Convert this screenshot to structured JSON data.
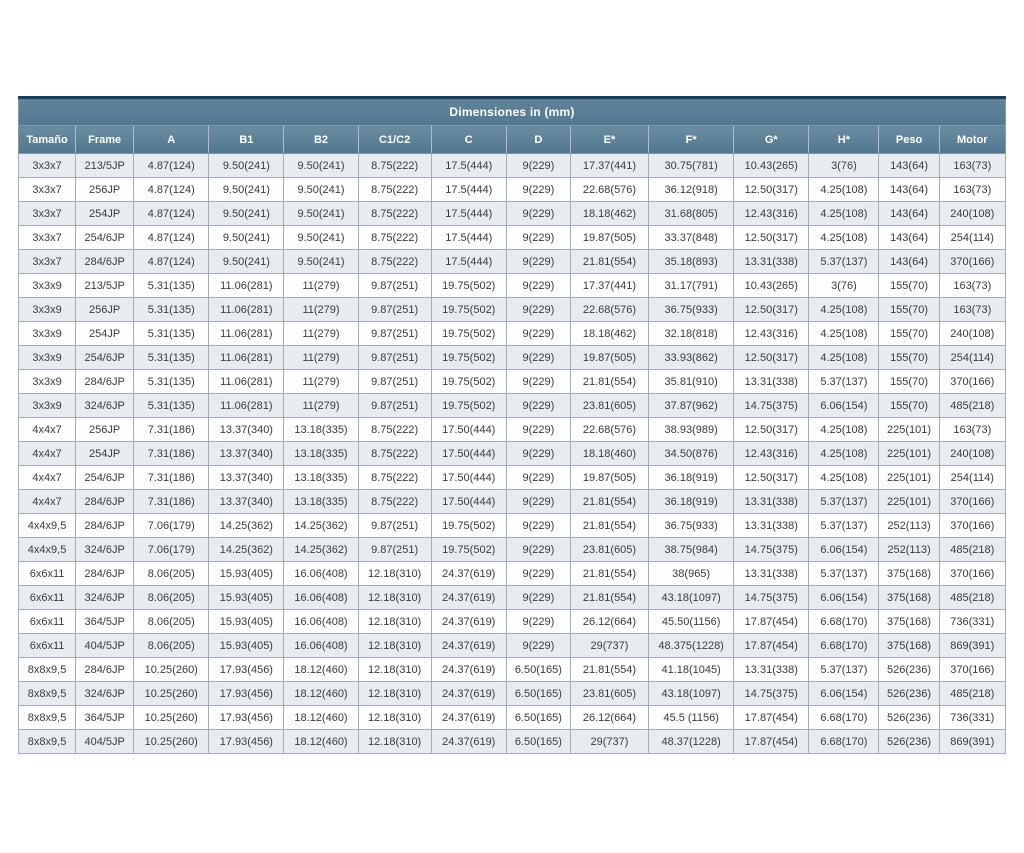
{
  "table": {
    "title": "Dimensiones in (mm)",
    "columns": [
      "Tamaño",
      "Frame",
      "A",
      "B1",
      "B2",
      "C1/C2",
      "C",
      "D",
      "E*",
      "F*",
      "G*",
      "H*",
      "Peso",
      "Motor"
    ],
    "rows": [
      [
        "3x3x7",
        "213/5JP",
        "4.87(124)",
        "9.50(241)",
        "9.50(241)",
        "8.75(222)",
        "17.5(444)",
        "9(229)",
        "17.37(441)",
        "30.75(781)",
        "10.43(265)",
        "3(76)",
        "143(64)",
        "163(73)"
      ],
      [
        "3x3x7",
        "256JP",
        "4.87(124)",
        "9.50(241)",
        "9.50(241)",
        "8.75(222)",
        "17.5(444)",
        "9(229)",
        "22.68(576)",
        "36.12(918)",
        "12.50(317)",
        "4.25(108)",
        "143(64)",
        "163(73)"
      ],
      [
        "3x3x7",
        "254JP",
        "4.87(124)",
        "9.50(241)",
        "9.50(241)",
        "8.75(222)",
        "17.5(444)",
        "9(229)",
        "18.18(462)",
        "31.68(805)",
        "12.43(316)",
        "4.25(108)",
        "143(64)",
        "240(108)"
      ],
      [
        "3x3x7",
        "254/6JP",
        "4.87(124)",
        "9.50(241)",
        "9.50(241)",
        "8.75(222)",
        "17.5(444)",
        "9(229)",
        "19.87(505)",
        "33.37(848)",
        "12.50(317)",
        "4.25(108)",
        "143(64)",
        "254(114)"
      ],
      [
        "3x3x7",
        "284/6JP",
        "4.87(124)",
        "9.50(241)",
        "9.50(241)",
        "8.75(222)",
        "17.5(444)",
        "9(229)",
        "21.81(554)",
        "35.18(893)",
        "13.31(338)",
        "5.37(137)",
        "143(64)",
        "370(166)"
      ],
      [
        "3x3x9",
        "213/5JP",
        "5.31(135)",
        "11.06(281)",
        "11(279)",
        "9.87(251)",
        "19.75(502)",
        "9(229)",
        "17.37(441)",
        "31.17(791)",
        "10.43(265)",
        "3(76)",
        "155(70)",
        "163(73)"
      ],
      [
        "3x3x9",
        "256JP",
        "5.31(135)",
        "11.06(281)",
        "11(279)",
        "9.87(251)",
        "19.75(502)",
        "9(229)",
        "22.68(576)",
        "36.75(933)",
        "12.50(317)",
        "4.25(108)",
        "155(70)",
        "163(73)"
      ],
      [
        "3x3x9",
        "254JP",
        "5.31(135)",
        "11.06(281)",
        "11(279)",
        "9.87(251)",
        "19.75(502)",
        "9(229)",
        "18.18(462)",
        "32.18(818)",
        "12.43(316)",
        "4.25(108)",
        "155(70)",
        "240(108)"
      ],
      [
        "3x3x9",
        "254/6JP",
        "5.31(135)",
        "11.06(281)",
        "11(279)",
        "9.87(251)",
        "19.75(502)",
        "9(229)",
        "19.87(505)",
        "33.93(862)",
        "12.50(317)",
        "4.25(108)",
        "155(70)",
        "254(114)"
      ],
      [
        "3x3x9",
        "284/6JP",
        "5.31(135)",
        "11.06(281)",
        "11(279)",
        "9.87(251)",
        "19.75(502)",
        "9(229)",
        "21.81(554)",
        "35.81(910)",
        "13.31(338)",
        "5.37(137)",
        "155(70)",
        "370(166)"
      ],
      [
        "3x3x9",
        "324/6JP",
        "5.31(135)",
        "11.06(281)",
        "11(279)",
        "9.87(251)",
        "19.75(502)",
        "9(229)",
        "23.81(605)",
        "37.87(962)",
        "14.75(375)",
        "6.06(154)",
        "155(70)",
        "485(218)"
      ],
      [
        "4x4x7",
        "256JP",
        "7.31(186)",
        "13.37(340)",
        "13.18(335)",
        "8.75(222)",
        "17.50(444)",
        "9(229)",
        "22.68(576)",
        "38.93(989)",
        "12.50(317)",
        "4.25(108)",
        "225(101)",
        "163(73)"
      ],
      [
        "4x4x7",
        "254JP",
        "7.31(186)",
        "13.37(340)",
        "13.18(335)",
        "8.75(222)",
        "17.50(444)",
        "9(229)",
        "18.18(460)",
        "34.50(876)",
        "12.43(316)",
        "4.25(108)",
        "225(101)",
        "240(108)"
      ],
      [
        "4x4x7",
        "254/6JP",
        "7.31(186)",
        "13.37(340)",
        "13.18(335)",
        "8.75(222)",
        "17.50(444)",
        "9(229)",
        "19.87(505)",
        "36.18(919)",
        "12.50(317)",
        "4.25(108)",
        "225(101)",
        "254(114)"
      ],
      [
        "4x4x7",
        "284/6JP",
        "7.31(186)",
        "13.37(340)",
        "13.18(335)",
        "8.75(222)",
        "17.50(444)",
        "9(229)",
        "21.81(554)",
        "36.18(919)",
        "13.31(338)",
        "5.37(137)",
        "225(101)",
        "370(166)"
      ],
      [
        "4x4x9,5",
        "284/6JP",
        "7.06(179)",
        "14.25(362)",
        "14.25(362)",
        "9.87(251)",
        "19.75(502)",
        "9(229)",
        "21.81(554)",
        "36.75(933)",
        "13.31(338)",
        "5.37(137)",
        "252(113)",
        "370(166)"
      ],
      [
        "4x4x9,5",
        "324/6JP",
        "7.06(179)",
        "14.25(362)",
        "14.25(362)",
        "9.87(251)",
        "19.75(502)",
        "9(229)",
        "23.81(605)",
        "38.75(984)",
        "14.75(375)",
        "6.06(154)",
        "252(113)",
        "485(218)"
      ],
      [
        "6x6x11",
        "284/6JP",
        "8.06(205)",
        "15.93(405)",
        "16.06(408)",
        "12.18(310)",
        "24.37(619)",
        "9(229)",
        "21.81(554)",
        "38(965)",
        "13.31(338)",
        "5.37(137)",
        "375(168)",
        "370(166)"
      ],
      [
        "6x6x11",
        "324/6JP",
        "8.06(205)",
        "15.93(405)",
        "16.06(408)",
        "12.18(310)",
        "24.37(619)",
        "9(229)",
        "21.81(554)",
        "43.18(1097)",
        "14.75(375)",
        "6.06(154)",
        "375(168)",
        "485(218)"
      ],
      [
        "6x6x11",
        "364/5JP",
        "8.06(205)",
        "15.93(405)",
        "16.06(408)",
        "12.18(310)",
        "24.37(619)",
        "9(229)",
        "26.12(664)",
        "45.50(1156)",
        "17.87(454)",
        "6.68(170)",
        "375(168)",
        "736(331)"
      ],
      [
        "6x6x11",
        "404/5JP",
        "8.06(205)",
        "15.93(405)",
        "16.06(408)",
        "12.18(310)",
        "24.37(619)",
        "9(229)",
        "29(737)",
        "48.375(1228)",
        "17.87(454)",
        "6.68(170)",
        "375(168)",
        "869(391)"
      ],
      [
        "8x8x9,5",
        "284/6JP",
        "10.25(260)",
        "17.93(456)",
        "18.12(460)",
        "12.18(310)",
        "24.37(619)",
        "6.50(165)",
        "21.81(554)",
        "41.18(1045)",
        "13.31(338)",
        "5.37(137)",
        "526(236)",
        "370(166)"
      ],
      [
        "8x8x9,5",
        "324/6JP",
        "10.25(260)",
        "17.93(456)",
        "18.12(460)",
        "12.18(310)",
        "24.37(619)",
        "6.50(165)",
        "23.81(605)",
        "43.18(1097)",
        "14.75(375)",
        "6.06(154)",
        "526(236)",
        "485(218)"
      ],
      [
        "8x8x9,5",
        "364/5JP",
        "10.25(260)",
        "17.93(456)",
        "18.12(460)",
        "12.18(310)",
        "24.37(619)",
        "6.50(165)",
        "26.12(664)",
        "45.5 (1156)",
        "17.87(454)",
        "6.68(170)",
        "526(236)",
        "736(331)"
      ],
      [
        "8x8x9,5",
        "404/5JP",
        "10.25(260)",
        "17.93(456)",
        "18.12(460)",
        "12.18(310)",
        "24.37(619)",
        "6.50(165)",
        "29(737)",
        "48.37(1228)",
        "17.87(454)",
        "6.68(170)",
        "526(236)",
        "869(391)"
      ]
    ],
    "column_keys": [
      "tamano",
      "frame",
      "a",
      "b1",
      "b2",
      "c1c2",
      "c",
      "d",
      "e",
      "f",
      "g",
      "h",
      "peso",
      "motor"
    ],
    "colors": {
      "header_bg": "#577c93",
      "header_top_border": "#1e3d58",
      "header_text": "#ffffff",
      "row_shaded_bg": "#e8ecf1",
      "row_plain_bg": "#fdfdfe",
      "cell_border": "#a2adb5",
      "cell_text": "#3b3b3b"
    }
  }
}
